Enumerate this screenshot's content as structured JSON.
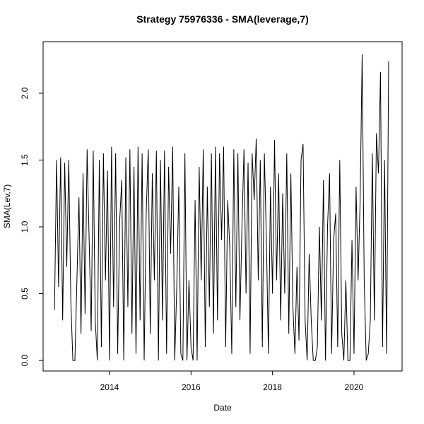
{
  "chart_data": {
    "type": "line",
    "title": "Strategy 75976336 - SMA(leverage,7)",
    "x_label": "Date",
    "y_label": "SMA(Lev,7)",
    "xlim": [
      2012.37,
      2021.18
    ],
    "xticks": [
      2014,
      2016,
      2018,
      2020
    ],
    "ylim": [
      -0.079,
      2.386
    ],
    "yticks": [
      {
        "value": 0,
        "label": "0.0"
      },
      0.5,
      {
        "value": 1,
        "label": "1.0"
      },
      1.5,
      {
        "value": 2,
        "label": "2.0"
      }
    ],
    "series": [
      {
        "name": "SMA(Lev,7)",
        "color": "#000000",
        "x": [
          2012.65,
          2012.7,
          2012.75,
          2012.8,
          2012.85,
          2012.9,
          2012.95,
          2013.0,
          2013.05,
          2013.1,
          2013.15,
          2013.2,
          2013.25,
          2013.3,
          2013.35,
          2013.4,
          2013.45,
          2013.5,
          2013.55,
          2013.6,
          2013.65,
          2013.7,
          2013.75,
          2013.8,
          2013.85,
          2013.9,
          2013.95,
          2014.0,
          2014.05,
          2014.1,
          2014.15,
          2014.2,
          2014.25,
          2014.3,
          2014.35,
          2014.4,
          2014.45,
          2014.5,
          2014.55,
          2014.6,
          2014.65,
          2014.7,
          2014.75,
          2014.8,
          2014.85,
          2014.9,
          2014.95,
          2015.0,
          2015.05,
          2015.1,
          2015.15,
          2015.2,
          2015.25,
          2015.3,
          2015.35,
          2015.4,
          2015.45,
          2015.5,
          2015.55,
          2015.6,
          2015.65,
          2015.7,
          2015.75,
          2015.8,
          2015.85,
          2015.9,
          2015.95,
          2016.0,
          2016.05,
          2016.1,
          2016.15,
          2016.2,
          2016.25,
          2016.3,
          2016.35,
          2016.4,
          2016.45,
          2016.5,
          2016.55,
          2016.6,
          2016.65,
          2016.7,
          2016.75,
          2016.8,
          2016.85,
          2016.9,
          2016.95,
          2017.0,
          2017.05,
          2017.1,
          2017.15,
          2017.2,
          2017.25,
          2017.3,
          2017.35,
          2017.4,
          2017.45,
          2017.5,
          2017.55,
          2017.6,
          2017.65,
          2017.7,
          2017.75,
          2017.8,
          2017.85,
          2017.9,
          2017.95,
          2018.0,
          2018.05,
          2018.1,
          2018.15,
          2018.2,
          2018.25,
          2018.3,
          2018.35,
          2018.4,
          2018.45,
          2018.5,
          2018.55,
          2018.6,
          2018.65,
          2018.7,
          2018.75,
          2018.8,
          2018.85,
          2018.9,
          2018.95,
          2019.0,
          2019.05,
          2019.1,
          2019.15,
          2019.2,
          2019.25,
          2019.3,
          2019.35,
          2019.4,
          2019.45,
          2019.5,
          2019.55,
          2019.6,
          2019.65,
          2019.7,
          2019.75,
          2019.8,
          2019.85,
          2019.9,
          2019.95,
          2020.0,
          2020.05,
          2020.1,
          2020.15,
          2020.2,
          2020.25,
          2020.3,
          2020.35,
          2020.4,
          2020.45,
          2020.5,
          2020.55,
          2020.6,
          2020.65,
          2020.7,
          2020.75,
          2020.8,
          2020.85
        ],
        "values": [
          0.38,
          1.5,
          0.55,
          1.52,
          0.3,
          1.48,
          0.7,
          1.5,
          0.45,
          0,
          0,
          0.6,
          1.22,
          0.2,
          1.4,
          0.35,
          1.58,
          0.9,
          0.22,
          1.57,
          0.3,
          0,
          1.5,
          0.1,
          1.55,
          0.6,
          1.42,
          0,
          1.6,
          0.4,
          1.55,
          0.05,
          1.05,
          1.35,
          0,
          1.52,
          0.4,
          1.58,
          0.2,
          1.45,
          0.05,
          1.6,
          0.3,
          1.55,
          0,
          1.1,
          1.58,
          0.2,
          1.4,
          0.6,
          1.57,
          0,
          1.5,
          0.3,
          1.57,
          0.05,
          1.45,
          0.8,
          1.6,
          0,
          0.55,
          1.3,
          0.05,
          0,
          1.55,
          0,
          0.6,
          0.1,
          0,
          1.2,
          0,
          1.45,
          0.6,
          1.58,
          0.1,
          1.3,
          0.4,
          1.55,
          0.2,
          1.6,
          0.3,
          1.55,
          0.9,
          1.6,
          0.1,
          1.2,
          0.85,
          0.05,
          1.58,
          0.4,
          1.55,
          0.3,
          1.0,
          1.58,
          0.5,
          1.48,
          0.05,
          1.55,
          1.2,
          1.66,
          0.6,
          1.5,
          0.1,
          1.55,
          0.9,
          0.05,
          1.3,
          0.5,
          1.65,
          0.6,
          1.4,
          0.3,
          1.25,
          0.5,
          1.55,
          0.2,
          1.4,
          0.4,
          0.05,
          0.7,
          0.15,
          1.5,
          1.62,
          0.3,
          0,
          0.8,
          0.3,
          0,
          0,
          0.1,
          1.0,
          0.3,
          1.35,
          0,
          1.0,
          1.4,
          0.05,
          0.9,
          1.1,
          0.1,
          1.5,
          0.2,
          0,
          0.6,
          0,
          0,
          0.9,
          0.05,
          1.3,
          0.6,
          1.2,
          2.29,
          0.6,
          0,
          0.05,
          0.3,
          1.55,
          0.3,
          1.7,
          1.4,
          2.16,
          0.1,
          1.5,
          0.05,
          2.24
        ]
      }
    ]
  }
}
